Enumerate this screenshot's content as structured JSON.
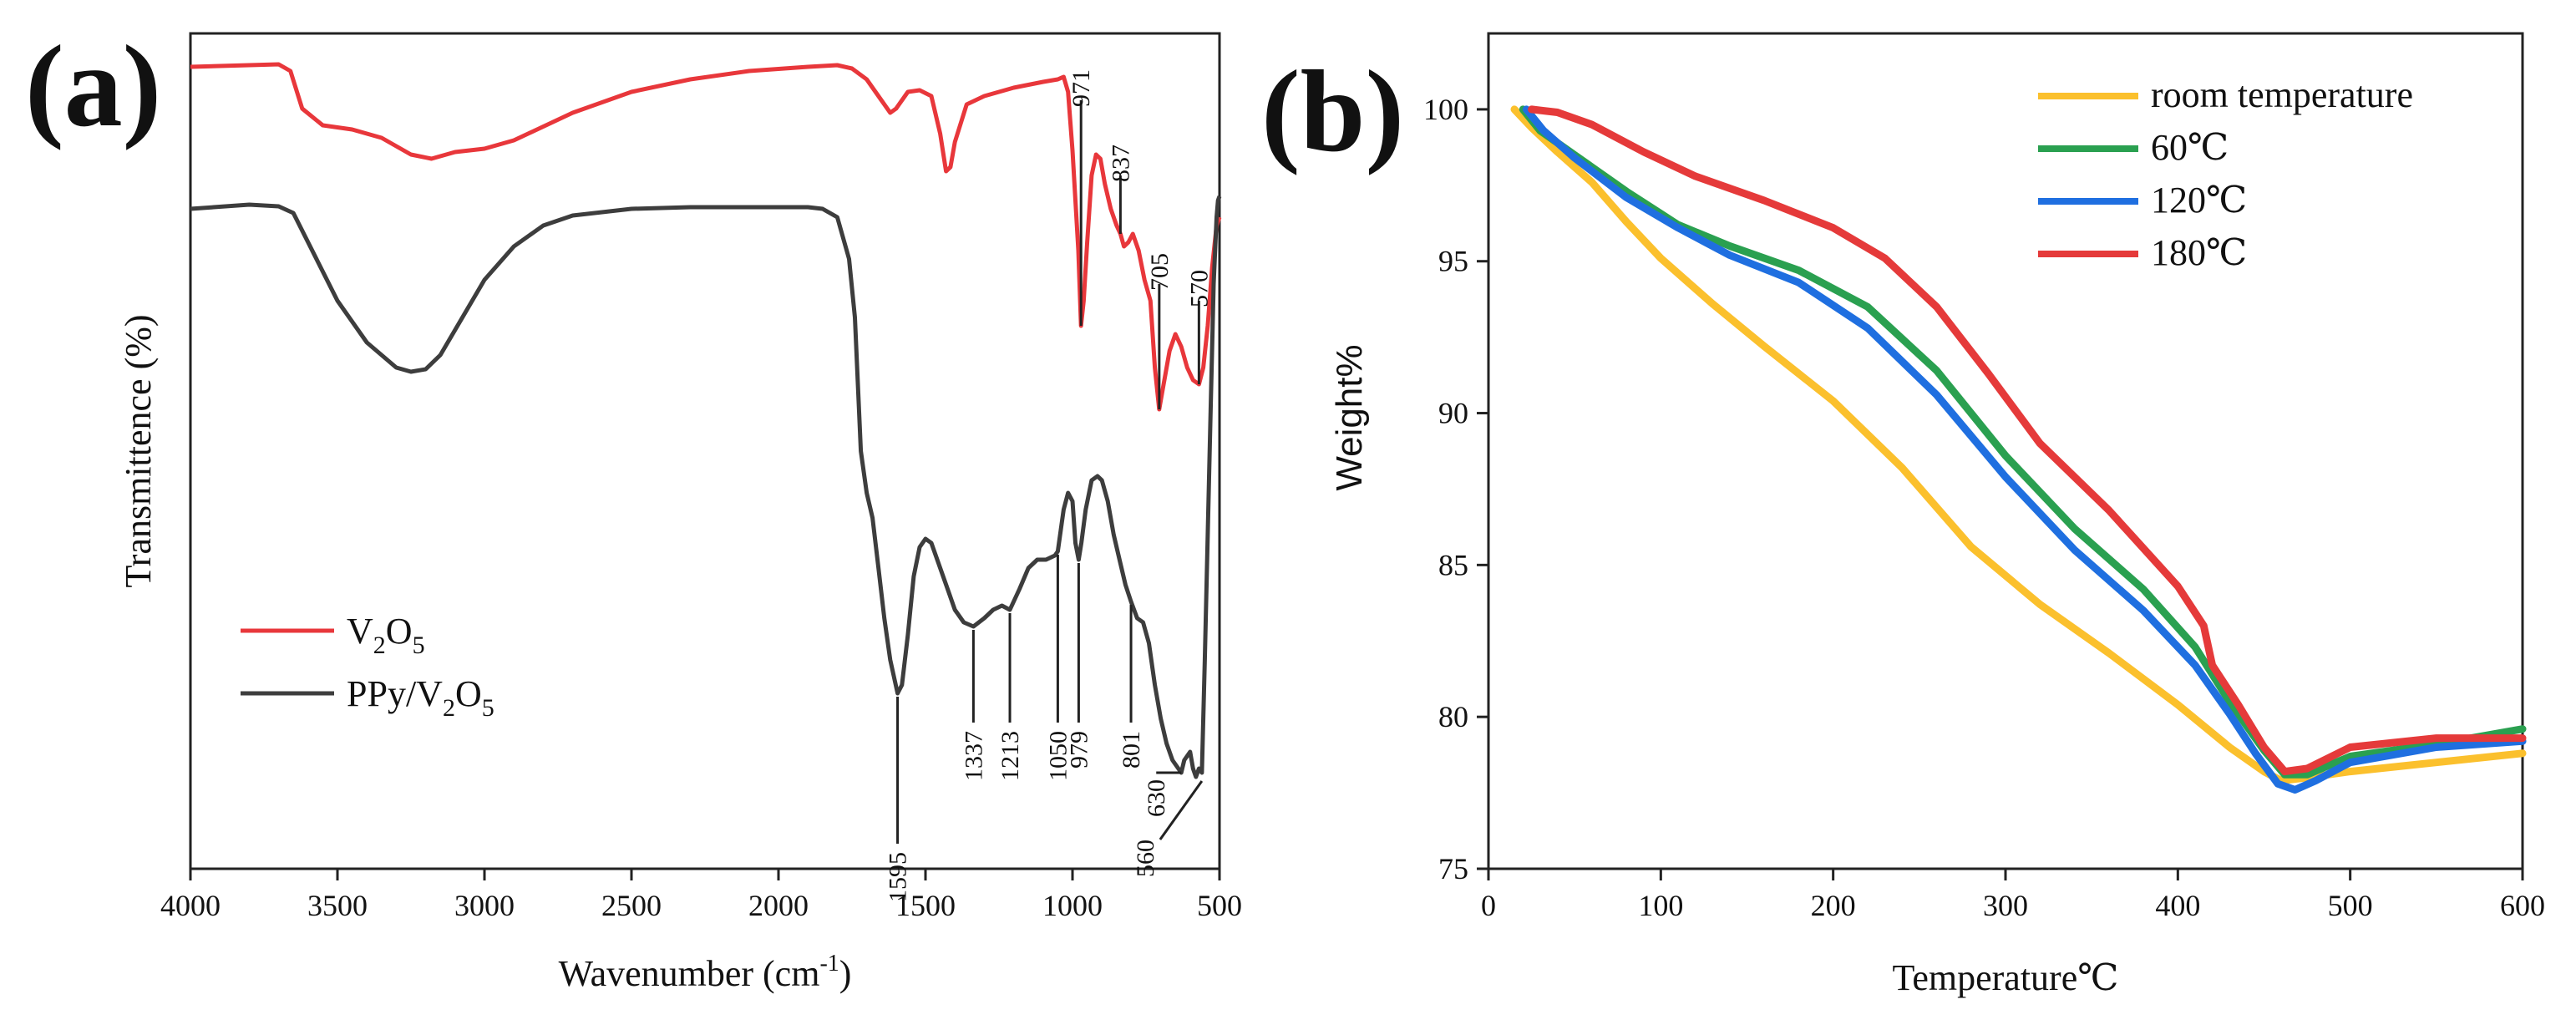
{
  "chart_data": [
    {
      "panel_label": "(a)",
      "type": "line",
      "title": "",
      "xlabel": "Wavenumber (cm",
      "xlabel_sup": "-1",
      "xlabel_suffix": ")",
      "ylabel": "Transmittence (%)",
      "xlim": [
        4000,
        500
      ],
      "x_ticks": [
        4000,
        3500,
        3000,
        2500,
        2000,
        1500,
        1000,
        500
      ],
      "y_ticks_shown": false,
      "legend_position": "lower-left",
      "series": [
        {
          "name": "V2O5",
          "legend": {
            "base": "V",
            "sub1": "2",
            "mid": "O",
            "sub2": "5"
          },
          "color": "#e8373b",
          "points": [
            [
              4000,
              0.96
            ],
            [
              3800,
              0.962
            ],
            [
              3700,
              0.963
            ],
            [
              3660,
              0.955
            ],
            [
              3620,
              0.91
            ],
            [
              3550,
              0.89
            ],
            [
              3450,
              0.885
            ],
            [
              3350,
              0.875
            ],
            [
              3250,
              0.855
            ],
            [
              3180,
              0.85
            ],
            [
              3100,
              0.858
            ],
            [
              3000,
              0.862
            ],
            [
              2900,
              0.872
            ],
            [
              2700,
              0.905
            ],
            [
              2500,
              0.93
            ],
            [
              2300,
              0.945
            ],
            [
              2100,
              0.955
            ],
            [
              1900,
              0.96
            ],
            [
              1800,
              0.962
            ],
            [
              1750,
              0.958
            ],
            [
              1700,
              0.945
            ],
            [
              1650,
              0.92
            ],
            [
              1620,
              0.905
            ],
            [
              1600,
              0.91
            ],
            [
              1560,
              0.93
            ],
            [
              1520,
              0.932
            ],
            [
              1480,
              0.925
            ],
            [
              1450,
              0.88
            ],
            [
              1430,
              0.835
            ],
            [
              1415,
              0.84
            ],
            [
              1400,
              0.87
            ],
            [
              1360,
              0.915
            ],
            [
              1300,
              0.925
            ],
            [
              1200,
              0.935
            ],
            [
              1100,
              0.942
            ],
            [
              1050,
              0.945
            ],
            [
              1030,
              0.948
            ],
            [
              1015,
              0.93
            ],
            [
              1000,
              0.86
            ],
            [
              990,
              0.8
            ],
            [
              980,
              0.74
            ],
            [
              971,
              0.65
            ],
            [
              962,
              0.68
            ],
            [
              950,
              0.75
            ],
            [
              935,
              0.83
            ],
            [
              920,
              0.855
            ],
            [
              905,
              0.85
            ],
            [
              890,
              0.82
            ],
            [
              870,
              0.79
            ],
            [
              850,
              0.77
            ],
            [
              837,
              0.76
            ],
            [
              825,
              0.745
            ],
            [
              810,
              0.75
            ],
            [
              795,
              0.76
            ],
            [
              775,
              0.74
            ],
            [
              755,
              0.705
            ],
            [
              735,
              0.68
            ],
            [
              720,
              0.6
            ],
            [
              705,
              0.55
            ],
            [
              690,
              0.58
            ],
            [
              670,
              0.62
            ],
            [
              650,
              0.64
            ],
            [
              630,
              0.625
            ],
            [
              610,
              0.6
            ],
            [
              590,
              0.585
            ],
            [
              570,
              0.58
            ],
            [
              555,
              0.6
            ],
            [
              540,
              0.65
            ],
            [
              525,
              0.72
            ],
            [
              510,
              0.77
            ],
            [
              500,
              0.78
            ]
          ]
        },
        {
          "name": "PPy/V2O5",
          "legend": {
            "base": "PPy/V",
            "sub1": "2",
            "mid": "O",
            "sub2": "5"
          },
          "color": "#3d3d3d",
          "points": [
            [
              4000,
              0.79
            ],
            [
              3800,
              0.795
            ],
            [
              3700,
              0.793
            ],
            [
              3650,
              0.785
            ],
            [
              3600,
              0.75
            ],
            [
              3500,
              0.68
            ],
            [
              3400,
              0.63
            ],
            [
              3300,
              0.6
            ],
            [
              3250,
              0.595
            ],
            [
              3200,
              0.598
            ],
            [
              3150,
              0.615
            ],
            [
              3100,
              0.645
            ],
            [
              3000,
              0.705
            ],
            [
              2900,
              0.745
            ],
            [
              2800,
              0.77
            ],
            [
              2700,
              0.782
            ],
            [
              2500,
              0.79
            ],
            [
              2300,
              0.792
            ],
            [
              2100,
              0.792
            ],
            [
              1900,
              0.792
            ],
            [
              1850,
              0.79
            ],
            [
              1800,
              0.78
            ],
            [
              1760,
              0.73
            ],
            [
              1740,
              0.66
            ],
            [
              1720,
              0.5
            ],
            [
              1700,
              0.45
            ],
            [
              1680,
              0.42
            ],
            [
              1660,
              0.36
            ],
            [
              1640,
              0.3
            ],
            [
              1620,
              0.25
            ],
            [
              1595,
              0.21
            ],
            [
              1580,
              0.22
            ],
            [
              1560,
              0.28
            ],
            [
              1540,
              0.35
            ],
            [
              1520,
              0.385
            ],
            [
              1500,
              0.395
            ],
            [
              1480,
              0.39
            ],
            [
              1450,
              0.36
            ],
            [
              1420,
              0.33
            ],
            [
              1400,
              0.31
            ],
            [
              1370,
              0.295
            ],
            [
              1337,
              0.29
            ],
            [
              1300,
              0.3
            ],
            [
              1270,
              0.31
            ],
            [
              1240,
              0.315
            ],
            [
              1213,
              0.31
            ],
            [
              1180,
              0.335
            ],
            [
              1150,
              0.36
            ],
            [
              1120,
              0.37
            ],
            [
              1090,
              0.37
            ],
            [
              1060,
              0.375
            ],
            [
              1050,
              0.38
            ],
            [
              1030,
              0.43
            ],
            [
              1015,
              0.45
            ],
            [
              1000,
              0.44
            ],
            [
              990,
              0.39
            ],
            [
              979,
              0.37
            ],
            [
              970,
              0.39
            ],
            [
              955,
              0.43
            ],
            [
              935,
              0.465
            ],
            [
              915,
              0.47
            ],
            [
              900,
              0.465
            ],
            [
              880,
              0.44
            ],
            [
              860,
              0.4
            ],
            [
              840,
              0.37
            ],
            [
              820,
              0.34
            ],
            [
              801,
              0.32
            ],
            [
              780,
              0.3
            ],
            [
              760,
              0.295
            ],
            [
              740,
              0.27
            ],
            [
              720,
              0.22
            ],
            [
              700,
              0.18
            ],
            [
              680,
              0.15
            ],
            [
              660,
              0.13
            ],
            [
              640,
              0.12
            ],
            [
              630,
              0.115
            ],
            [
              620,
              0.13
            ],
            [
              600,
              0.14
            ],
            [
              590,
              0.12
            ],
            [
              580,
              0.11
            ],
            [
              570,
              0.12
            ],
            [
              560,
              0.115
            ],
            [
              550,
              0.25
            ],
            [
              540,
              0.4
            ],
            [
              530,
              0.55
            ],
            [
              520,
              0.7
            ],
            [
              510,
              0.78
            ],
            [
              505,
              0.8
            ],
            [
              500,
              0.805
            ]
          ]
        }
      ],
      "annotations": [
        {
          "label": "971",
          "x": 971
        },
        {
          "label": "837",
          "x": 837
        },
        {
          "label": "705",
          "x": 705
        },
        {
          "label": "570",
          "x": 570
        },
        {
          "label": "1595",
          "x": 1595
        },
        {
          "label": "1337",
          "x": 1337
        },
        {
          "label": "1213",
          "x": 1213
        },
        {
          "label": "1050",
          "x": 1050
        },
        {
          "label": "979",
          "x": 979
        },
        {
          "label": "801",
          "x": 801
        },
        {
          "label": "630",
          "x": 630
        },
        {
          "label": "560",
          "x": 560
        }
      ]
    },
    {
      "panel_label": "(b)",
      "type": "line",
      "title": "",
      "xlabel": "Temperature℃",
      "ylabel": "Weight%",
      "xlim": [
        0,
        600
      ],
      "ylim": [
        75,
        102.5
      ],
      "x_ticks": [
        0,
        100,
        200,
        300,
        400,
        500,
        600
      ],
      "y_ticks": [
        75,
        80,
        85,
        90,
        95,
        100
      ],
      "legend_position": "top-right",
      "series": [
        {
          "name": "room temperature",
          "color": "#fbc02d",
          "points": [
            [
              15,
              100
            ],
            [
              25,
              99.4
            ],
            [
              40,
              98.6
            ],
            [
              60,
              97.6
            ],
            [
              80,
              96.3
            ],
            [
              100,
              95.1
            ],
            [
              130,
              93.6
            ],
            [
              160,
              92.2
            ],
            [
              200,
              90.4
            ],
            [
              240,
              88.2
            ],
            [
              280,
              85.6
            ],
            [
              320,
              83.7
            ],
            [
              360,
              82.1
            ],
            [
              400,
              80.4
            ],
            [
              430,
              79
            ],
            [
              450,
              78.2
            ],
            [
              460,
              77.9
            ],
            [
              475,
              78
            ],
            [
              500,
              78.2
            ],
            [
              550,
              78.5
            ],
            [
              600,
              78.8
            ]
          ]
        },
        {
          "name": "60℃",
          "color": "#2aa050",
          "points": [
            [
              20,
              100
            ],
            [
              30,
              99.3
            ],
            [
              50,
              98.5
            ],
            [
              80,
              97.3
            ],
            [
              110,
              96.2
            ],
            [
              140,
              95.5
            ],
            [
              180,
              94.7
            ],
            [
              220,
              93.5
            ],
            [
              260,
              91.4
            ],
            [
              300,
              88.6
            ],
            [
              340,
              86.2
            ],
            [
              380,
              84.2
            ],
            [
              410,
              82.3
            ],
            [
              430,
              80.5
            ],
            [
              450,
              78.9
            ],
            [
              462,
              78.1
            ],
            [
              475,
              78.1
            ],
            [
              500,
              78.7
            ],
            [
              550,
              79.1
            ],
            [
              600,
              79.6
            ]
          ]
        },
        {
          "name": "120℃",
          "color": "#1f6fe0",
          "points": [
            [
              22,
              100
            ],
            [
              32,
              99.3
            ],
            [
              50,
              98.4
            ],
            [
              80,
              97.1
            ],
            [
              110,
              96.1
            ],
            [
              140,
              95.2
            ],
            [
              180,
              94.3
            ],
            [
              220,
              92.8
            ],
            [
              260,
              90.6
            ],
            [
              300,
              87.9
            ],
            [
              340,
              85.5
            ],
            [
              380,
              83.5
            ],
            [
              410,
              81.7
            ],
            [
              430,
              80.1
            ],
            [
              445,
              78.8
            ],
            [
              458,
              77.8
            ],
            [
              468,
              77.6
            ],
            [
              480,
              77.9
            ],
            [
              500,
              78.5
            ],
            [
              550,
              79
            ],
            [
              600,
              79.2
            ]
          ]
        },
        {
          "name": "180℃",
          "color": "#e53a3a",
          "points": [
            [
              25,
              100
            ],
            [
              40,
              99.9
            ],
            [
              60,
              99.5
            ],
            [
              90,
              98.6
            ],
            [
              120,
              97.8
            ],
            [
              160,
              97
            ],
            [
              200,
              96.1
            ],
            [
              230,
              95.1
            ],
            [
              260,
              93.5
            ],
            [
              290,
              91.3
            ],
            [
              320,
              89
            ],
            [
              360,
              86.8
            ],
            [
              400,
              84.3
            ],
            [
              415,
              83
            ],
            [
              420,
              81.7
            ],
            [
              435,
              80.4
            ],
            [
              450,
              79
            ],
            [
              462,
              78.2
            ],
            [
              475,
              78.3
            ],
            [
              500,
              79
            ],
            [
              550,
              79.3
            ],
            [
              600,
              79.3
            ]
          ]
        }
      ]
    }
  ]
}
